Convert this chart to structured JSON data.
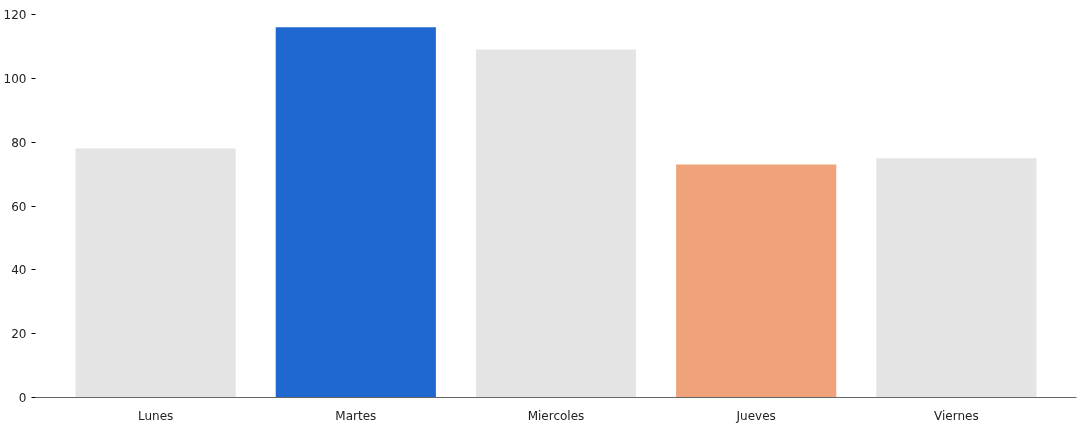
{
  "chart_data": {
    "type": "bar",
    "categories": [
      "Lunes",
      "Martes",
      "Miercoles",
      "Jueves",
      "Viernes"
    ],
    "values": [
      78,
      116,
      109,
      73,
      75
    ],
    "colors": [
      "#e4e4e4",
      "#1f68d0",
      "#e4e4e4",
      "#f0a27b",
      "#e4e4e4"
    ],
    "ylim": [
      0,
      120
    ],
    "yticks": [
      0,
      20,
      40,
      60,
      80,
      100,
      120
    ],
    "grid": false
  }
}
